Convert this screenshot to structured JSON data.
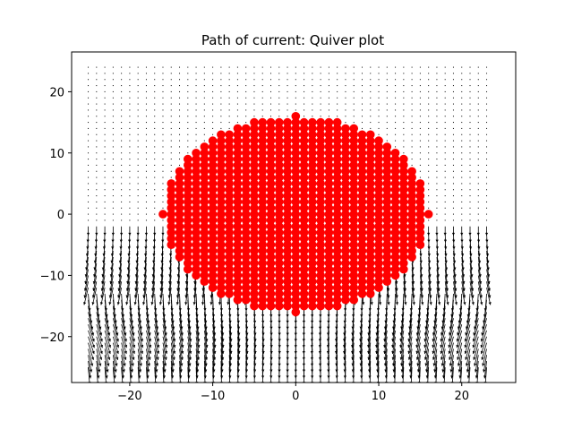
{
  "chart_data": {
    "type": "quiver",
    "title": "Path of current: Quiver plot",
    "xlabel": "",
    "ylabel": "",
    "xlim": [
      -27,
      26.5
    ],
    "ylim": [
      -27.5,
      26.5
    ],
    "xticks": [
      -20,
      -10,
      0,
      10,
      20
    ],
    "yticks": [
      -20,
      -10,
      0,
      10,
      20
    ],
    "xtick_labels": [
      "−20",
      "−10",
      "0",
      "10",
      "20"
    ],
    "ytick_labels": [
      "−20",
      "−10",
      "0",
      "10",
      "20"
    ],
    "grid": false,
    "quiver_field": {
      "x_range": [
        -25,
        23
      ],
      "y_range": [
        -25,
        24
      ],
      "step": 1,
      "color": "#000000",
      "description_of_flow": "Vectors are near-zero above y≈-2 and point downward (negative y) with large magnitude below the red disk, converging toward x≈0 near y≈-20."
    },
    "scatter_series": {
      "color": "#ff0000",
      "marker": "circle",
      "region": "disk of integer grid points centered at (0,0) with radius 16",
      "center": [
        0,
        0
      ],
      "radius": 16
    }
  }
}
